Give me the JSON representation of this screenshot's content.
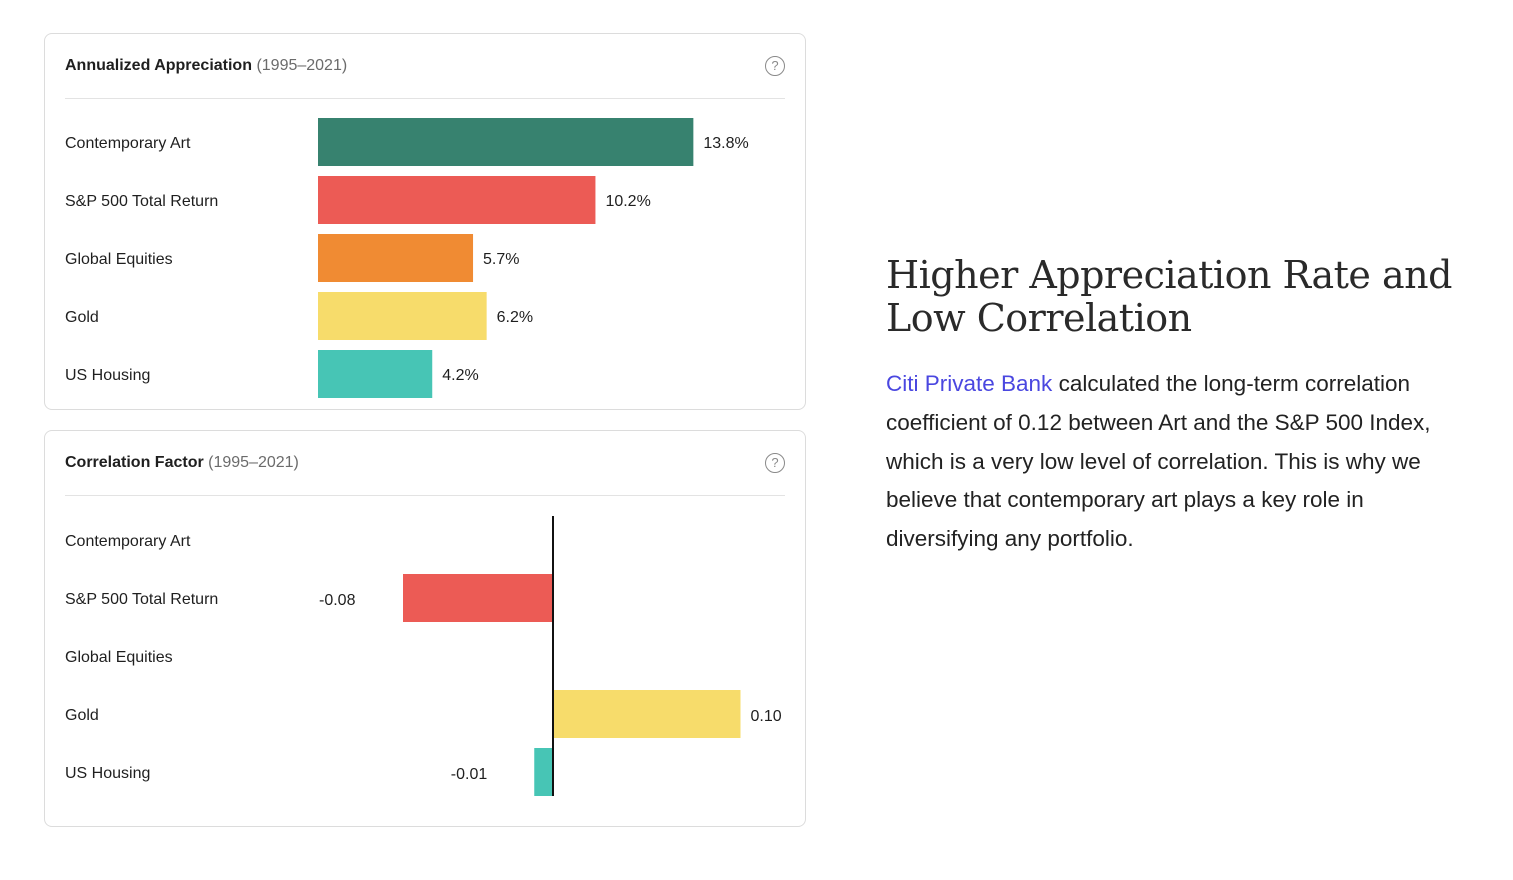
{
  "colors": {
    "contemporary_art": "#37826f",
    "sp500": "#ec5b55",
    "global_equities": "#f08b33",
    "gold": "#f7dc6b",
    "us_housing": "#47c5b5",
    "link": "#4a47e0"
  },
  "appreciation_card": {
    "title": "Annualized Appreciation",
    "subtitle": "(1995–2021)",
    "help_icon": "question-circle-icon",
    "help_glyph": "?"
  },
  "correlation_card": {
    "title": "Correlation Factor",
    "subtitle": "(1995–2021)",
    "help_icon": "question-circle-icon",
    "help_glyph": "?"
  },
  "article": {
    "heading": "Higher Appreciation Rate and Low Correlation",
    "link_text": "Citi Private Bank",
    "body": " calculated the long-term correlation coefficient of 0.12 between Art and the S&P 500 Index, which is a very low level of correlation. This is why we believe that contemporary art plays a key role in diversifying any portfolio."
  },
  "chart_data": [
    {
      "type": "bar",
      "orientation": "horizontal",
      "categories": [
        "Contemporary Art",
        "S&P 500 Total Return",
        "Global Equities",
        "Gold",
        "US Housing"
      ],
      "values": [
        13.8,
        10.2,
        5.7,
        6.2,
        4.2
      ],
      "value_labels": [
        "13.8%",
        "10.2%",
        "5.7%",
        "6.2%",
        "4.2%"
      ],
      "colors": [
        "#37826f",
        "#ec5b55",
        "#f08b33",
        "#f7dc6b",
        "#47c5b5"
      ],
      "unit": "%",
      "xlim": [
        0,
        16
      ],
      "grid": false
    },
    {
      "type": "bar",
      "orientation": "horizontal",
      "categories": [
        "Contemporary Art",
        "S&P 500 Total Return",
        "Global Equities",
        "Gold",
        "US Housing"
      ],
      "values": [
        null,
        -0.08,
        null,
        0.1,
        -0.01
      ],
      "value_labels": [
        "",
        "-0.08",
        "",
        "0.10",
        "-0.01"
      ],
      "colors": [
        "#37826f",
        "#ec5b55",
        "#f08b33",
        "#f7dc6b",
        "#47c5b5"
      ],
      "xlim": [
        -0.08,
        0.1
      ],
      "zero_line": true,
      "grid": false
    }
  ]
}
